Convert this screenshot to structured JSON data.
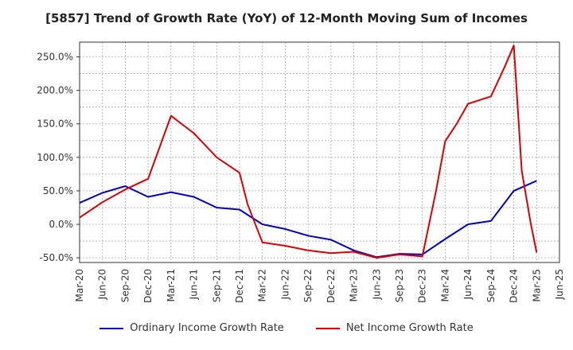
{
  "chart_data": {
    "type": "line",
    "title": "[5857]  Trend of Growth Rate (YoY) of 12-Month Moving Sum of Incomes",
    "xlabel": "",
    "ylabel": "",
    "ylim": [
      -57,
      272
    ],
    "yticks": [
      -50,
      0,
      50,
      100,
      150,
      200,
      250
    ],
    "ytick_labels": [
      "-50.0%",
      "0.0%",
      "50.0%",
      "100.0%",
      "150.0%",
      "200.0%",
      "250.0%"
    ],
    "x_ticks": [
      "Mar-20",
      "Jun-20",
      "Sep-20",
      "Dec-20",
      "Mar-21",
      "Jun-21",
      "Sep-21",
      "Dec-21",
      "Mar-22",
      "Jun-22",
      "Sep-22",
      "Dec-22",
      "Mar-23",
      "Jun-23",
      "Sep-23",
      "Dec-23",
      "Mar-24",
      "Jun-24",
      "Sep-24",
      "Dec-24",
      "Mar-25",
      "Jun-25"
    ],
    "grid": true,
    "legend_position": "bottom",
    "series": [
      {
        "name": "Ordinary Income Growth Rate",
        "color": "#0000cc",
        "points": [
          [
            0,
            32
          ],
          [
            1,
            47
          ],
          [
            2,
            57
          ],
          [
            3,
            41
          ],
          [
            4,
            48
          ],
          [
            5,
            41
          ],
          [
            6,
            25
          ],
          [
            7,
            22
          ],
          [
            8,
            0
          ],
          [
            9,
            -7
          ],
          [
            10,
            -17
          ],
          [
            11,
            -23
          ],
          [
            12,
            -39
          ],
          [
            13,
            -49
          ],
          [
            14,
            -44
          ],
          [
            15,
            -45
          ],
          [
            16,
            -22
          ],
          [
            17,
            0
          ],
          [
            18,
            5
          ],
          [
            19,
            50
          ],
          [
            20,
            65
          ]
        ]
      },
      {
        "name": "Net Income Growth Rate",
        "color": "#dd0000",
        "points": [
          [
            0,
            10
          ],
          [
            1,
            33
          ],
          [
            2,
            52
          ],
          [
            3,
            68
          ],
          [
            4,
            162
          ],
          [
            5,
            136
          ],
          [
            6,
            100
          ],
          [
            7,
            77
          ],
          [
            7.35,
            30
          ],
          [
            8,
            -27
          ],
          [
            9,
            -32
          ],
          [
            10,
            -39
          ],
          [
            11,
            -43
          ],
          [
            12,
            -41
          ],
          [
            13,
            -50
          ],
          [
            14,
            -45
          ],
          [
            15,
            -48
          ],
          [
            15.6,
            50
          ],
          [
            16,
            124
          ],
          [
            16.5,
            150
          ],
          [
            17,
            180
          ],
          [
            18,
            191
          ],
          [
            18.6,
            235
          ],
          [
            19,
            267
          ],
          [
            19.35,
            80
          ],
          [
            19.75,
            0
          ],
          [
            20,
            -42
          ]
        ]
      }
    ]
  }
}
